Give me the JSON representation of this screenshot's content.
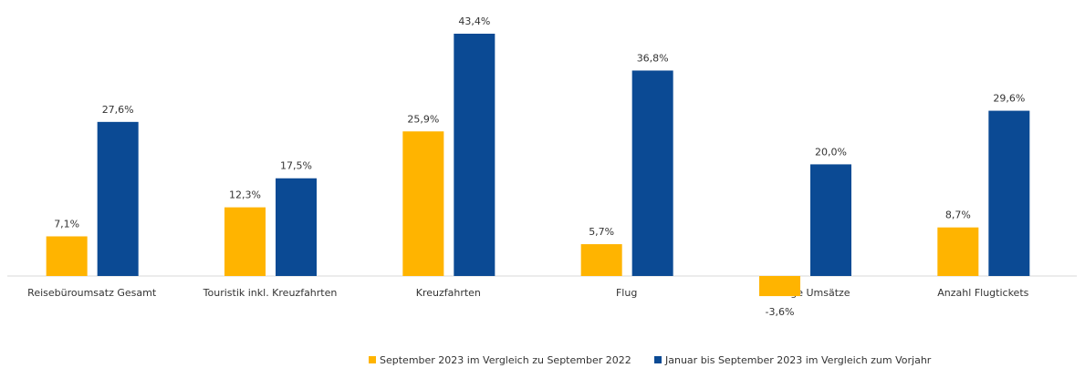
{
  "chart_data": {
    "type": "bar",
    "categories": [
      "Reisebüroumsatz Gesamt",
      "Touristik inkl. Kreuzfahrten",
      "Kreuzfahrten",
      "Flug",
      "Sonstige Umsätze",
      "Anzahl Flugtickets"
    ],
    "series": [
      {
        "name": "September 2023 im Vergleich zu September 2022",
        "color": "#ffb400",
        "values": [
          7.1,
          12.3,
          25.9,
          5.7,
          -3.6,
          8.7
        ],
        "value_labels": [
          "7,1%",
          "12,3%",
          "25,9%",
          "5,7%",
          "-3,6%",
          "8,7%"
        ]
      },
      {
        "name": "Januar bis September 2023 im Vergleich zum Vorjahr",
        "color": "#0b4a94",
        "values": [
          27.6,
          17.5,
          43.4,
          36.8,
          20.0,
          29.6
        ],
        "value_labels": [
          "27,6%",
          "17,5%",
          "43,4%",
          "36,8%",
          "20,0%",
          "29,6%"
        ]
      }
    ],
    "legend": "bottom"
  }
}
